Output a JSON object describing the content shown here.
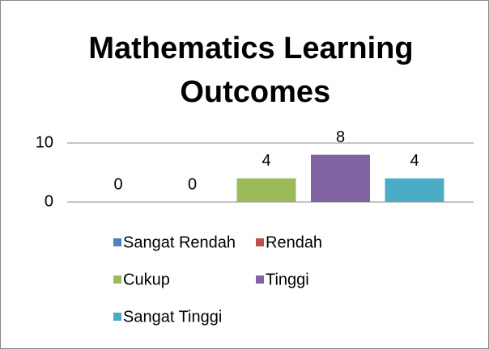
{
  "chart_data": {
    "type": "bar",
    "title": "Mathematics Learning Outcomes",
    "categories": [
      null
    ],
    "series": [
      {
        "name": "Sangat Rendah",
        "color": "#4f81bd",
        "values": [
          0
        ]
      },
      {
        "name": "Rendah",
        "color": "#c0504d",
        "values": [
          0
        ]
      },
      {
        "name": "Cukup",
        "color": "#9bbb59",
        "values": [
          4
        ]
      },
      {
        "name": "Tinggi",
        "color": "#8064a2",
        "values": [
          8
        ]
      },
      {
        "name": "Sangat Tinggi",
        "color": "#4bacc6",
        "values": [
          4
        ]
      }
    ],
    "ylim": [
      0,
      10
    ],
    "yticks": [
      0,
      10
    ],
    "grid": true,
    "legend": "bottom"
  }
}
